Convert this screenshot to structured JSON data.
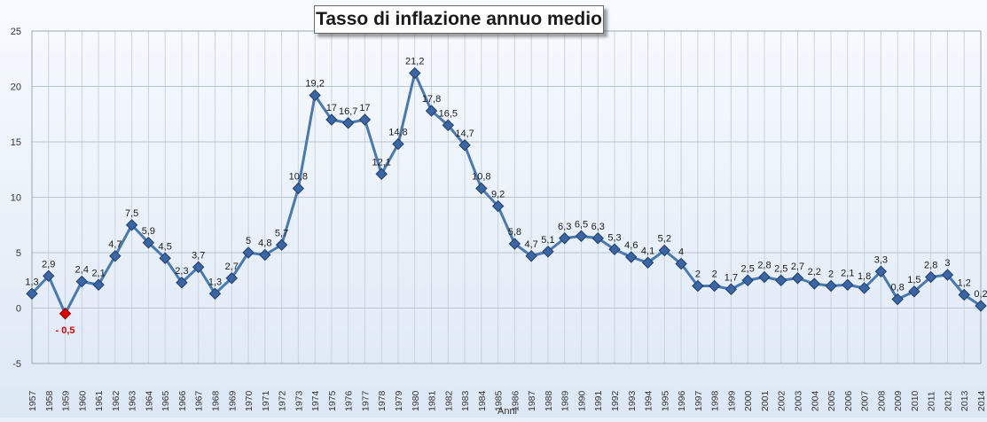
{
  "chart_data": {
    "type": "line",
    "title": "Tasso di inflazione annuo medio",
    "xlabel": "Anni",
    "ylabel": "",
    "ylim": [
      -5,
      25
    ],
    "yticks": [
      -5,
      0,
      5,
      10,
      15,
      20,
      25
    ],
    "grid": true,
    "legend": "none",
    "categories": [
      "1957",
      "1958",
      "1959",
      "1960",
      "1961",
      "1962",
      "1963",
      "1964",
      "1965",
      "1966",
      "1967",
      "1968",
      "1969",
      "1970",
      "1971",
      "1972",
      "1973",
      "1974",
      "1975",
      "1976",
      "1977",
      "1978",
      "1979",
      "1980",
      "1981",
      "1982",
      "1983",
      "1984",
      "1985",
      "1986",
      "1987",
      "1988",
      "1989",
      "1990",
      "1991",
      "1992",
      "1993",
      "1994",
      "1995",
      "1996",
      "1997",
      "1998",
      "1999",
      "2000",
      "2001",
      "2002",
      "2003",
      "2004",
      "2005",
      "2006",
      "2007",
      "2008",
      "2009",
      "2010",
      "2011",
      "2012",
      "2013",
      "2014"
    ],
    "series": [
      {
        "values": [
          1.3,
          2.9,
          -0.5,
          2.4,
          2.1,
          4.7,
          7.5,
          5.9,
          4.5,
          2.3,
          3.7,
          1.3,
          2.7,
          5,
          4.8,
          5.7,
          10.8,
          19.2,
          17,
          16.7,
          17,
          12.1,
          14.8,
          21.2,
          17.8,
          16.5,
          14.7,
          10.8,
          9.2,
          5.8,
          4.7,
          5.1,
          6.3,
          6.5,
          6.3,
          5.3,
          4.6,
          4.1,
          5.2,
          4,
          2,
          2,
          1.7,
          2.5,
          2.8,
          2.5,
          2.7,
          2.2,
          2,
          2.1,
          1.8,
          3.3,
          0.8,
          1.5,
          2.8,
          3,
          1.2,
          0.2
        ],
        "labels": [
          "1,3",
          "2,9",
          "- 0,5",
          "2,4",
          "2,1",
          "4,7",
          "7,5",
          "5,9",
          "4,5",
          "2,3",
          "3,7",
          "1,3",
          "2,7",
          "5",
          "4,8",
          "5,7",
          "10,8",
          "19,2",
          "17",
          "16,7",
          "17",
          "12,1",
          "14,8",
          "21,2",
          "17,8",
          "16,5",
          "14,7",
          "10,8",
          "9,2",
          "5,8",
          "4,7",
          "5,1",
          "6,3",
          "6,5",
          "6,3",
          "5,3",
          "4,6",
          "4,1",
          "5,2",
          "4",
          "2",
          "2",
          "1,7",
          "2,5",
          "2,8",
          "2,5",
          "2,7",
          "2,2",
          "2",
          "2,1",
          "1,8",
          "3,3",
          "0,8",
          "1,5",
          "2,8",
          "3",
          "1,2",
          "0,2"
        ],
        "color": "#4a78b0",
        "marker_color": "#3b66a3",
        "highlight_color": "#e00000"
      }
    ]
  }
}
